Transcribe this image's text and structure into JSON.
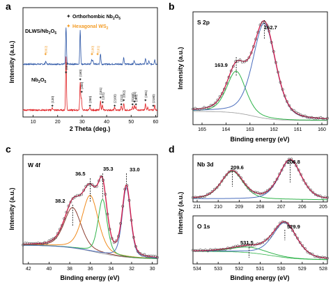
{
  "panels": {
    "a": {
      "letter": "a",
      "xlabel": "2 Theta (deg.)",
      "ylabel": "Intensity (a.u.)",
      "xticks": [
        "10",
        "20",
        "30",
        "40",
        "50",
        "60"
      ],
      "legend": {
        "orthorhombic": "Orthorhombic Nb2O5",
        "hexagonal": "Hexagonal WS2"
      },
      "labels": {
        "composite": "DLWS/Nb2O5",
        "oxide": "Nb2O5"
      },
      "hkl_ws2": [
        "(002)",
        "(100)",
        "(101)"
      ],
      "hkl_nb2o5": [
        "(130)",
        "(001)",
        "(180)",
        "(200)",
        "(250)",
        "(181)",
        "(201)",
        "(2100)",
        "(212)",
        "(002)",
        "(0160)",
        "(331)",
        "(202)",
        "(381)",
        "(2180)"
      ]
    },
    "b": {
      "letter": "b",
      "title": "S 2p",
      "xlabel": "Binding energy (eV)",
      "ylabel": "Intensity (a.u.)",
      "xticks": [
        "165",
        "164",
        "163",
        "162",
        "161",
        "160"
      ],
      "peaks": [
        "163.9",
        "162.7"
      ]
    },
    "c": {
      "letter": "c",
      "title": "W 4f",
      "xlabel": "Binding energy (eV)",
      "ylabel": "Intensity (a.u.)",
      "xticks": [
        "42",
        "40",
        "38",
        "36",
        "34",
        "32",
        "30"
      ],
      "peaks": [
        "38.2",
        "36.5",
        "35.3",
        "33.0"
      ]
    },
    "d": {
      "letter": "d",
      "ylabel": "Intensity (a.u.)",
      "xlabel": "Binding energy (eV)",
      "nb": {
        "title": "Nb 3d",
        "xticks": [
          "211",
          "210",
          "209",
          "208",
          "207",
          "206",
          "205"
        ],
        "peaks": [
          "209.6",
          "206.8"
        ]
      },
      "o": {
        "title": "O 1s",
        "xticks": [
          "534",
          "533",
          "532",
          "531",
          "530",
          "529",
          "528"
        ],
        "peaks": [
          "531.5",
          "529.9"
        ]
      }
    }
  },
  "colors": {
    "composite_line": "#2b55a6",
    "oxide_line": "#e0191c",
    "legend_star": "#222222",
    "ws2_star": "#f39c26",
    "fit_envelope": "#d3204e",
    "markers": "#555555",
    "s_comp1": "#2fb34a",
    "s_comp2": "#4a6dbd",
    "background": "#9a9a9a",
    "w_comp_a": "#8b3a2d",
    "w_comp_b": "#f08a1c",
    "w_comp_c": "#2fb34a",
    "w_comp_d": "#4a6dbd",
    "o_comp_b": "#2fb34a",
    "o_comp_a": "#4a6dbd"
  },
  "chart_data": [
    {
      "panel": "a",
      "type": "line",
      "xlabel": "2 Theta (deg.)",
      "ylabel": "Intensity (a.u.)",
      "xlim": [
        10,
        60
      ],
      "series": [
        {
          "name": "DLWS/Nb2O5",
          "peaks_2theta": [
            14.3,
            22.6,
            28.4,
            33.1,
            33.6,
            36.7,
            46.2,
            50.5,
            55.1,
            56.5,
            58.9
          ]
        },
        {
          "name": "Nb2O5",
          "peaks_2theta": [
            17.0,
            22.6,
            28.4,
            28.9,
            32.4,
            36.7,
            37.5,
            42.5,
            45.2,
            46.2,
            49.8,
            50.6,
            51.2,
            55.1,
            56.0,
            58.9
          ]
        }
      ]
    },
    {
      "panel": "b",
      "type": "line",
      "title": "S 2p",
      "xlabel": "Binding energy (eV)",
      "ylabel": "Intensity (a.u.)",
      "xlim": [
        165.5,
        160
      ],
      "peaks_eV": [
        163.9,
        162.7
      ]
    },
    {
      "panel": "c",
      "type": "line",
      "title": "W 4f",
      "xlabel": "Binding energy (eV)",
      "ylabel": "Intensity (a.u.)",
      "xlim": [
        43,
        30
      ],
      "peaks_eV": [
        38.2,
        36.5,
        35.3,
        33.0
      ]
    },
    {
      "panel": "d-top",
      "type": "line",
      "title": "Nb 3d",
      "xlim": [
        211.5,
        205
      ],
      "peaks_eV": [
        209.6,
        206.8
      ]
    },
    {
      "panel": "d-bottom",
      "type": "line",
      "title": "O 1s",
      "xlabel": "Binding energy (eV)",
      "xlim": [
        534,
        528
      ],
      "peaks_eV": [
        531.5,
        529.9
      ]
    }
  ]
}
